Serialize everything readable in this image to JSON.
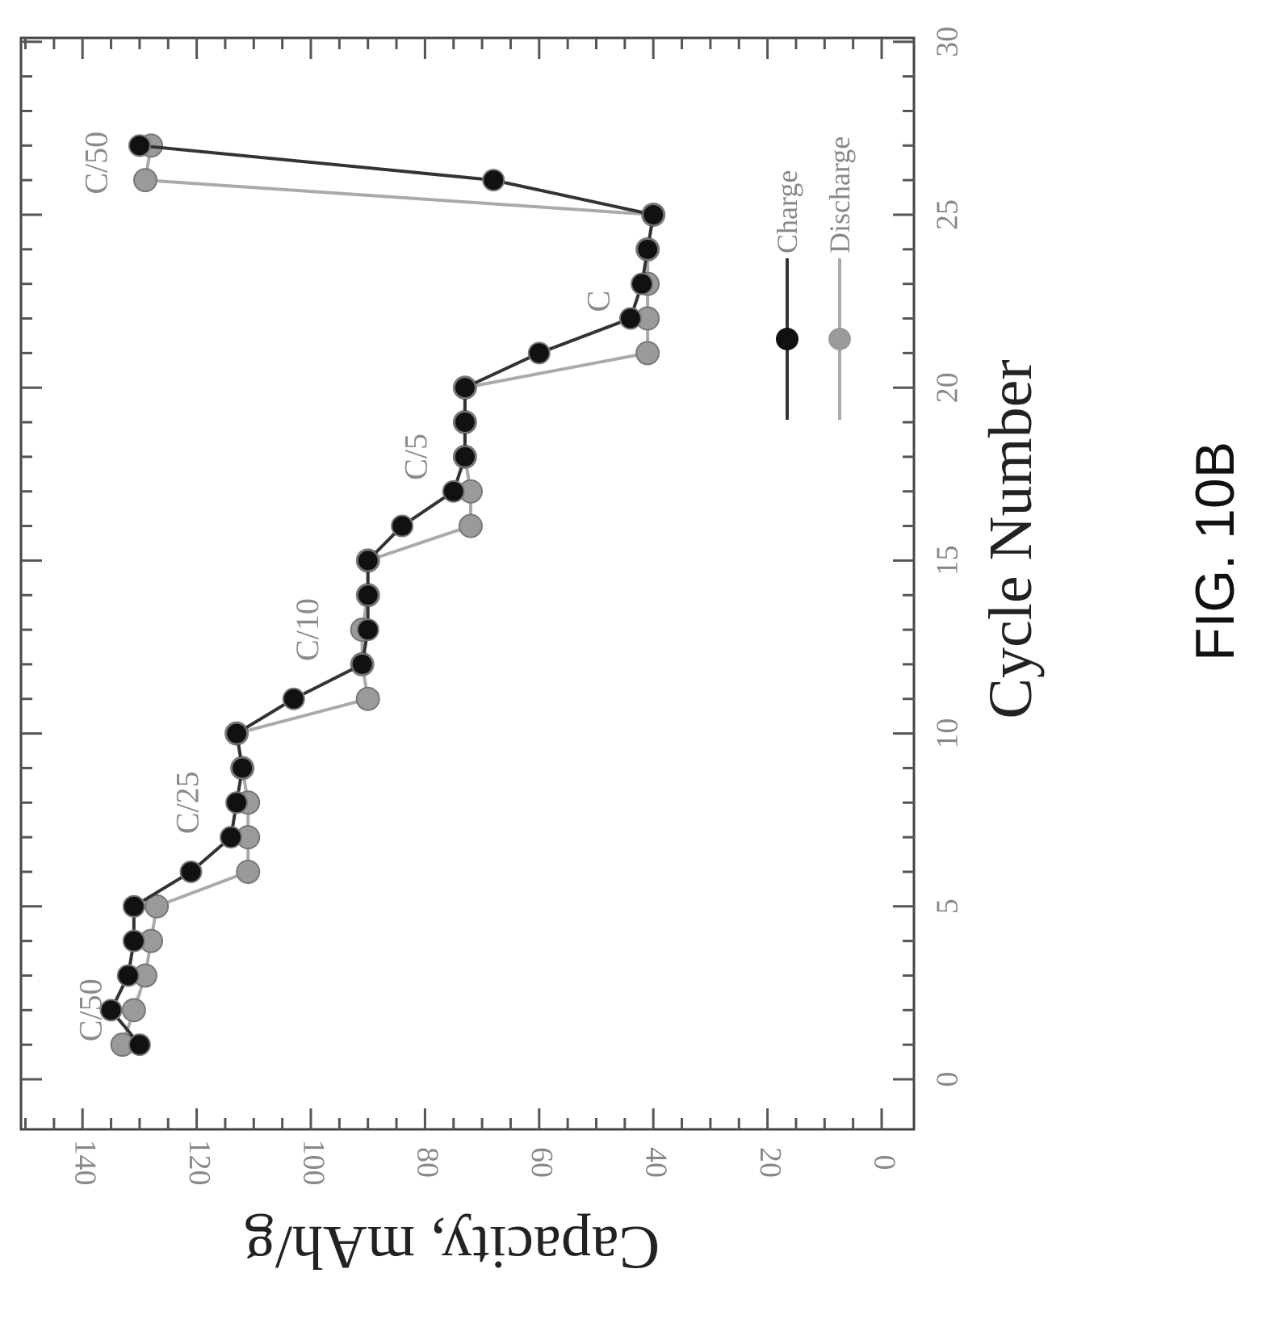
{
  "chart_data": {
    "type": "line",
    "xlabel": "Cycle Number",
    "ylabel": "Capacity, mAh/g",
    "xlim": [
      0,
      30
    ],
    "ylim": [
      0,
      145
    ],
    "xticks": [
      "0",
      "5",
      "10",
      "15",
      "20",
      "25",
      "30"
    ],
    "yticks": [
      "0",
      "20",
      "40",
      "60",
      "80",
      "100",
      "120",
      "140"
    ],
    "orientation": "rotated-90-clockwise",
    "series": [
      {
        "name": "Charge",
        "marker_color": "#111111",
        "line_color": "#333333",
        "x": [
          1,
          2,
          3,
          4,
          5,
          6,
          7,
          8,
          9,
          10,
          11,
          12,
          13,
          14,
          15,
          16,
          17,
          18,
          19,
          20,
          21,
          22,
          23,
          24,
          25,
          26,
          27
        ],
        "y": [
          130,
          135,
          132,
          131,
          131,
          121,
          114,
          113,
          112,
          113,
          103,
          91,
          90,
          90,
          90,
          84,
          75,
          73,
          73,
          73,
          60,
          44,
          42,
          41,
          40,
          68,
          130
        ]
      },
      {
        "name": "Discharge",
        "marker_color": "#9a9a9a",
        "line_color": "#aaaaaa",
        "x": [
          1,
          2,
          3,
          4,
          5,
          6,
          7,
          8,
          9,
          10,
          11,
          12,
          13,
          14,
          15,
          16,
          17,
          18,
          19,
          20,
          21,
          22,
          23,
          24,
          25,
          26,
          27
        ],
        "y": [
          133,
          131,
          129,
          128,
          127,
          111,
          111,
          111,
          112,
          113,
          90,
          91,
          91,
          90,
          90,
          72,
          72,
          73,
          73,
          73,
          41,
          41,
          41,
          41,
          40,
          129,
          128
        ]
      }
    ],
    "annotations": [
      {
        "text": "C/50",
        "x": 2,
        "y": 138
      },
      {
        "text": "C/25",
        "x": 8,
        "y": 121
      },
      {
        "text": "C/10",
        "x": 13,
        "y": 100
      },
      {
        "text": "C/5",
        "x": 18,
        "y": 81
      },
      {
        "text": "C",
        "x": 22.5,
        "y": 49
      },
      {
        "text": "C/50",
        "x": 26.5,
        "y": 137
      }
    ],
    "legend": {
      "placement": "bottom-right",
      "entries": [
        "Charge",
        "Discharge"
      ]
    },
    "grid": false
  },
  "figure_label": "FIG. 10B"
}
